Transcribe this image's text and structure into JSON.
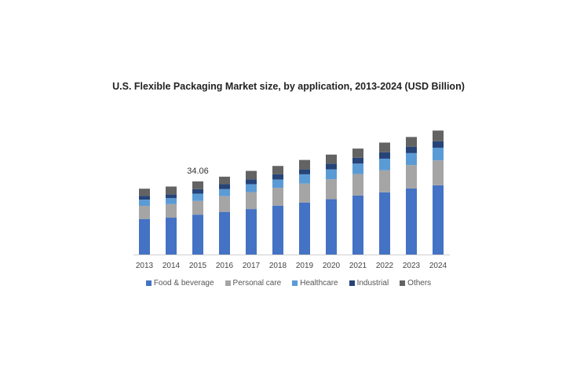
{
  "chart_data": {
    "type": "bar",
    "stacked": true,
    "title": "U.S. Flexible Packaging Market size, by application, 2013-2024 (USD Billion)",
    "xlabel": "",
    "ylabel": "",
    "ylim": [
      0,
      60
    ],
    "grid": false,
    "legend_placement": "bottom",
    "categories": [
      "2013",
      "2014",
      "2015",
      "2016",
      "2017",
      "2018",
      "2019",
      "2020",
      "2021",
      "2022",
      "2023",
      "2024"
    ],
    "series": [
      {
        "name": "Food & beverage",
        "color": "#4472C4",
        "values": [
          16.5,
          17.2,
          18.6,
          19.9,
          21.2,
          22.8,
          24.2,
          25.8,
          27.5,
          29.0,
          30.8,
          32.3
        ]
      },
      {
        "name": "Personal care",
        "color": "#A5A5A5",
        "values": [
          6.2,
          6.3,
          6.4,
          7.3,
          7.9,
          8.3,
          8.9,
          9.3,
          10.0,
          10.3,
          10.9,
          11.6
        ]
      },
      {
        "name": "Healthcare",
        "color": "#5B9BD5",
        "values": [
          2.9,
          2.8,
          3.4,
          3.3,
          3.7,
          3.9,
          4.3,
          4.6,
          4.9,
          5.4,
          5.6,
          5.9
        ]
      },
      {
        "name": "Industrial",
        "color": "#264478",
        "values": [
          1.8,
          1.8,
          2.1,
          2.3,
          2.3,
          2.4,
          2.3,
          2.7,
          2.7,
          3.0,
          3.0,
          3.0
        ]
      },
      {
        "name": "Others",
        "color": "#636363",
        "values": [
          3.3,
          3.6,
          3.6,
          3.5,
          3.9,
          3.9,
          4.4,
          4.2,
          4.3,
          4.5,
          4.5,
          5.0
        ]
      }
    ],
    "annotations": [
      {
        "category": "2015",
        "text": "34.06"
      }
    ]
  }
}
